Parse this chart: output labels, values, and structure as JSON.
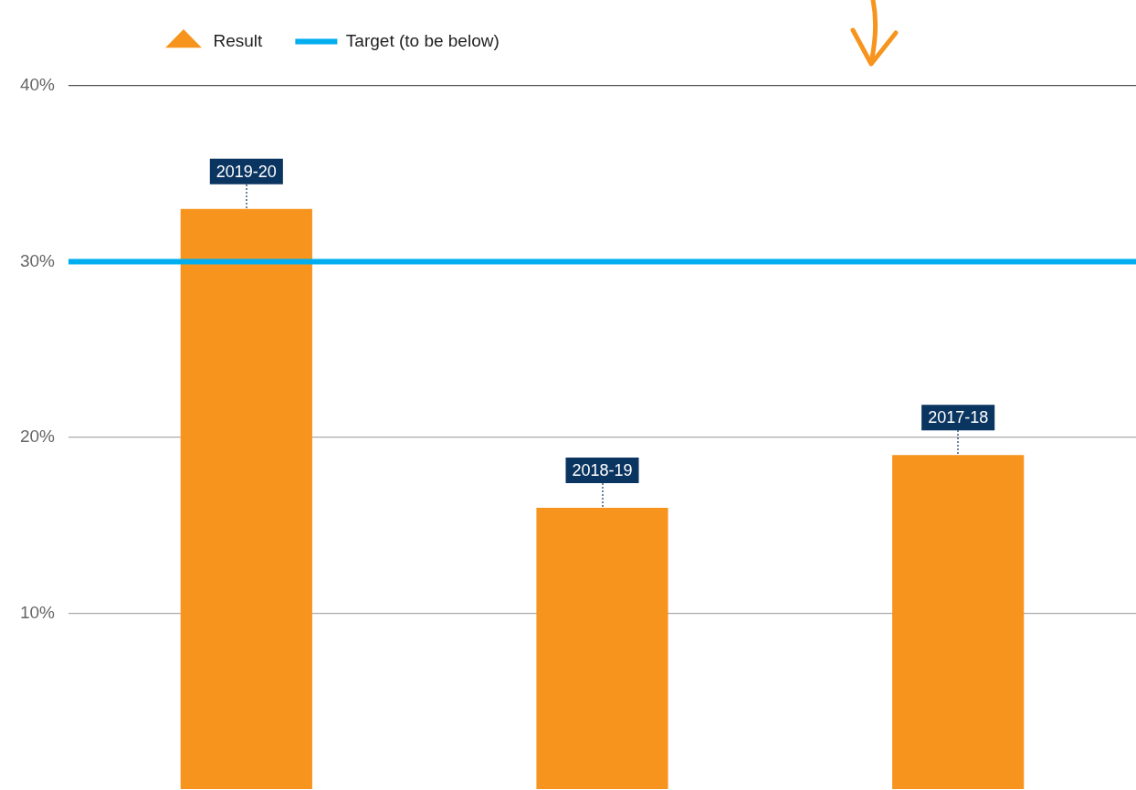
{
  "chart_data": {
    "type": "bar",
    "categories": [
      "2019-20",
      "2018-19",
      "2017-18"
    ],
    "series": [
      {
        "name": "Result",
        "color": "#f7941d",
        "values": [
          33,
          16,
          19
        ]
      }
    ],
    "ylim": [
      0,
      40
    ],
    "yticks": [
      {
        "value": 10,
        "label": "10%"
      },
      {
        "value": 20,
        "label": "20%"
      },
      {
        "value": 30,
        "label": "30%"
      },
      {
        "value": 40,
        "label": "40%"
      }
    ],
    "ref_lines": [
      {
        "axis": "y",
        "value": 30,
        "label": "Target (to be below)",
        "color": "#00aeef"
      }
    ],
    "grid": "y",
    "legend": "top left",
    "tick_labels": "y"
  }
}
